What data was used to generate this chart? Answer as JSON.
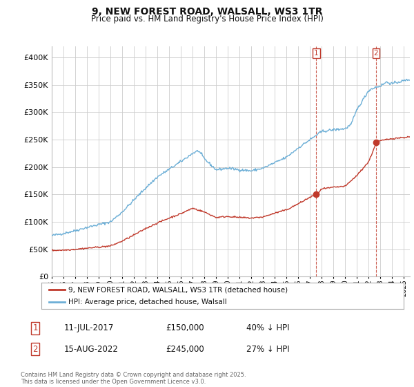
{
  "title": "9, NEW FOREST ROAD, WALSALL, WS3 1TR",
  "subtitle": "Price paid vs. HM Land Registry's House Price Index (HPI)",
  "hpi_color": "#6baed6",
  "price_color": "#c0392b",
  "marker_color": "#c0392b",
  "annotation_color": "#c0392b",
  "grid_color": "#cccccc",
  "bg_color": "#ffffff",
  "legend_label_price": "9, NEW FOREST ROAD, WALSALL, WS3 1TR (detached house)",
  "legend_label_hpi": "HPI: Average price, detached house, Walsall",
  "footnote": "Contains HM Land Registry data © Crown copyright and database right 2025.\nThis data is licensed under the Open Government Licence v3.0.",
  "transaction1_label": "1",
  "transaction1_date": "11-JUL-2017",
  "transaction1_price": "£150,000",
  "transaction1_hpi": "40% ↓ HPI",
  "transaction2_label": "2",
  "transaction2_date": "15-AUG-2022",
  "transaction2_price": "£245,000",
  "transaction2_hpi": "27% ↓ HPI",
  "ylim": [
    0,
    420000
  ],
  "yticks": [
    0,
    50000,
    100000,
    150000,
    200000,
    250000,
    300000,
    350000,
    400000
  ],
  "xlim_start": 1995.0,
  "xlim_end": 2025.5,
  "transaction1_x": 2017.53,
  "transaction1_y": 150000,
  "transaction2_x": 2022.62,
  "transaction2_y": 245000
}
